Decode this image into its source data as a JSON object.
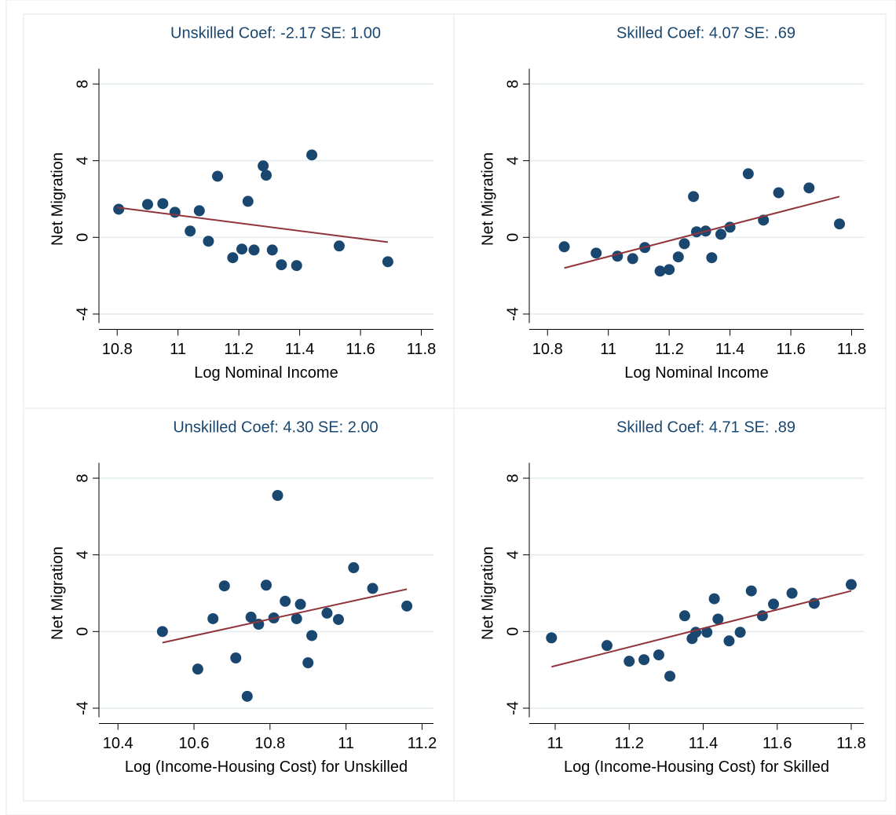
{
  "chart_data": [
    {
      "type": "scatter",
      "title": "Unskilled Coef: -2.17 SE: 1.00",
      "x_label": "Log Nominal Income",
      "y_label": "Net Migration",
      "xlim": [
        10.74,
        11.84
      ],
      "ylim": [
        -4.8,
        8.8
      ],
      "xticks": [
        10.8,
        11,
        11.2,
        11.4,
        11.6,
        11.8
      ],
      "yticks": [
        -4,
        0,
        4,
        8
      ],
      "grid": true,
      "series": [
        {
          "color": "#1a476f",
          "x": [
            10.805,
            10.9,
            10.95,
            10.99,
            11.04,
            11.07,
            11.1,
            11.13,
            11.18,
            11.21,
            11.23,
            11.25,
            11.28,
            11.29,
            11.31,
            11.34,
            11.39,
            11.44,
            11.53,
            11.69
          ],
          "values": [
            1.47,
            1.72,
            1.76,
            1.31,
            0.33,
            1.39,
            -0.2,
            3.19,
            -1.06,
            -0.61,
            1.88,
            -0.66,
            3.73,
            3.24,
            -0.66,
            -1.43,
            -1.47,
            4.3,
            -0.45,
            -1.27
          ]
        }
      ],
      "fit_line": {
        "color": "#90353b",
        "x": [
          10.8,
          11.69
        ],
        "values": [
          1.56,
          -0.25
        ]
      }
    },
    {
      "type": "scatter",
      "title": "Skilled Coef: 4.07 SE: .69",
      "x_label": "Log Nominal Income",
      "y_label": "Net Migration",
      "xlim": [
        10.74,
        11.84
      ],
      "ylim": [
        -4.8,
        8.8
      ],
      "xticks": [
        10.8,
        11,
        11.2,
        11.4,
        11.6,
        11.8
      ],
      "yticks": [
        -4,
        0,
        4,
        8
      ],
      "grid": true,
      "series": [
        {
          "color": "#1a476f",
          "x": [
            10.855,
            10.96,
            11.03,
            11.08,
            11.12,
            11.17,
            11.2,
            11.23,
            11.25,
            11.28,
            11.29,
            11.32,
            11.34,
            11.37,
            11.4,
            11.46,
            11.51,
            11.56,
            11.66,
            11.76
          ],
          "values": [
            -0.49,
            -0.82,
            -0.98,
            -1.11,
            -0.53,
            -1.76,
            -1.68,
            -1.02,
            -0.33,
            2.13,
            0.29,
            0.33,
            -1.06,
            0.16,
            0.53,
            3.32,
            0.9,
            2.33,
            2.58,
            0.7
          ]
        }
      ],
      "fit_line": {
        "color": "#90353b",
        "x": [
          10.855,
          11.76
        ],
        "values": [
          -1.6,
          2.13
        ]
      }
    },
    {
      "type": "scatter",
      "title": "Unskilled Coef: 4.30 SE: 2.00",
      "x_label": "Log (Income-Housing Cost) for Unskilled",
      "y_label": "Net Migration",
      "xlim": [
        10.35,
        11.23
      ],
      "ylim": [
        -4.8,
        8.8
      ],
      "xticks": [
        10.4,
        10.6,
        10.8,
        11,
        11.2
      ],
      "yticks": [
        -4,
        0,
        4,
        8
      ],
      "grid": true,
      "series": [
        {
          "color": "#1a476f",
          "x": [
            10.517,
            10.61,
            10.65,
            10.68,
            10.71,
            10.74,
            10.75,
            10.77,
            10.79,
            10.82,
            10.81,
            10.84,
            10.87,
            10.88,
            10.9,
            10.91,
            10.95,
            10.98,
            11.02,
            11.07,
            11.16
          ],
          "values": [
            0.0,
            -1.96,
            0.67,
            2.38,
            -1.38,
            -3.38,
            0.75,
            0.38,
            2.42,
            7.1,
            0.71,
            1.58,
            0.67,
            1.42,
            -1.63,
            -0.21,
            0.96,
            0.63,
            3.33,
            2.25,
            1.33
          ]
        }
      ],
      "fit_line": {
        "color": "#90353b",
        "x": [
          10.517,
          11.16
        ],
        "values": [
          -0.58,
          2.21
        ]
      }
    },
    {
      "type": "scatter",
      "title": "Skilled Coef: 4.71 SE: .89",
      "x_label": "Log (Income-Housing Cost) for Skilled",
      "y_label": "Net Migration",
      "xlim": [
        10.93,
        11.834
      ],
      "ylim": [
        -4.8,
        8.8
      ],
      "xticks": [
        11,
        11.2,
        11.4,
        11.6,
        11.8
      ],
      "yticks": [
        -4,
        0,
        4,
        8
      ],
      "grid": true,
      "series": [
        {
          "color": "#1a476f",
          "x": [
            10.99,
            11.14,
            11.2,
            11.24,
            11.28,
            11.31,
            11.35,
            11.37,
            11.38,
            11.41,
            11.43,
            11.44,
            11.47,
            11.5,
            11.53,
            11.56,
            11.59,
            11.64,
            11.7,
            11.8
          ],
          "values": [
            -0.33,
            -0.73,
            -1.55,
            -1.47,
            -1.22,
            -2.33,
            0.82,
            -0.37,
            -0.04,
            -0.04,
            1.71,
            0.65,
            -0.49,
            -0.04,
            2.12,
            0.82,
            1.43,
            2.0,
            1.47,
            2.45
          ]
        }
      ],
      "fit_line": {
        "color": "#90353b",
        "x": [
          10.99,
          11.8
        ],
        "values": [
          -1.84,
          2.12
        ]
      }
    }
  ]
}
